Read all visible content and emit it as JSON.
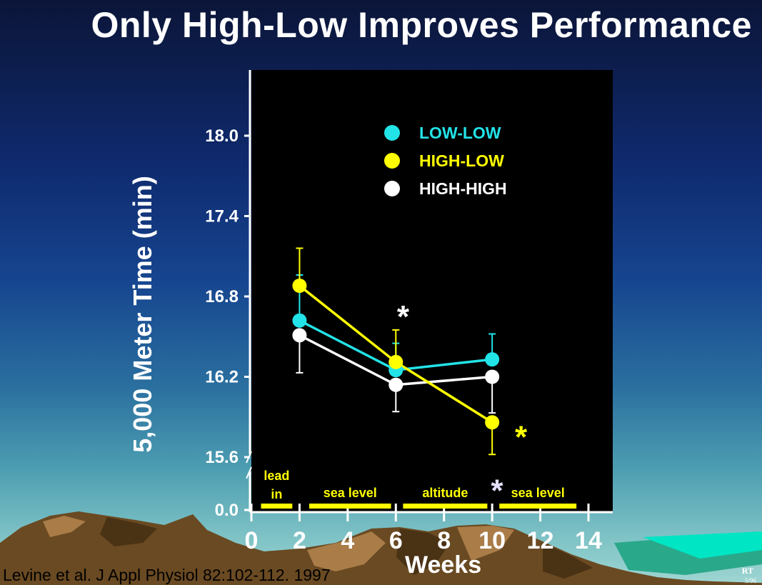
{
  "slide": {
    "title": "Only High-Low Improves Performance",
    "citation": "Levine et al. J Appl Physiol 82:102-112. 1997",
    "corner_mark": "RT",
    "corner_mark_2": "5/96"
  },
  "chart_data": {
    "type": "line",
    "ylabel": "5,000 Meter Time (min)",
    "xlabel": "Weeks",
    "x_ticks": [
      "0",
      "2",
      "4",
      "6",
      "8",
      "10",
      "12",
      "14"
    ],
    "y_ticks": [
      "0.0",
      "15.6",
      "16.2",
      "16.8",
      "17.4",
      "18.0"
    ],
    "y_tick_values": [
      15.2,
      15.6,
      16.2,
      16.8,
      17.4,
      18.0
    ],
    "ylim": [
      15.2,
      18.0
    ],
    "xlim": [
      0,
      14
    ],
    "axis_break": true,
    "legend_placement": "top-right",
    "series": [
      {
        "name": "LOW-LOW",
        "color": "#22e3e8",
        "points": [
          {
            "x": 2,
            "y": 16.62,
            "err_up": 0.34
          },
          {
            "x": 6,
            "y": 16.25,
            "err_up": 0.2
          },
          {
            "x": 10,
            "y": 16.33,
            "err_up": 0.19
          }
        ]
      },
      {
        "name": "HIGH-LOW",
        "color": "#ffff00",
        "points": [
          {
            "x": 2,
            "y": 16.88,
            "err_up": 0.28
          },
          {
            "x": 6,
            "y": 16.31,
            "err_up": 0.24
          },
          {
            "x": 10,
            "y": 15.86,
            "err_down": 0.24
          }
        ]
      },
      {
        "name": "HIGH-HIGH",
        "color": "#ffffff",
        "points": [
          {
            "x": 2,
            "y": 16.51,
            "err_down": 0.28
          },
          {
            "x": 6,
            "y": 16.14,
            "err_down": 0.2
          },
          {
            "x": 10,
            "y": 16.2,
            "err_down": 0.27
          }
        ]
      }
    ],
    "phases": [
      {
        "label_line1": "lead",
        "label_line2": "in",
        "x_start": 0.4,
        "x_end": 1.7
      },
      {
        "label_line1": "sea level",
        "label_line2": "",
        "x_start": 2.4,
        "x_end": 5.8
      },
      {
        "label_line1": "altitude",
        "label_line2": "",
        "x_start": 6.3,
        "x_end": 9.8
      },
      {
        "label_line1": "sea level",
        "label_line2": "",
        "x_start": 10.3,
        "x_end": 13.5
      }
    ],
    "phase_color": "#ffff00",
    "annotations": [
      {
        "text": "*",
        "x": 6.3,
        "y": 16.7,
        "color": "#ffffff"
      },
      {
        "text": "*",
        "x": 11.2,
        "y": 15.8,
        "color": "#ffff00"
      },
      {
        "text": "*",
        "x": 10.2,
        "y": 15.4,
        "color": "#e6e0ff"
      }
    ]
  }
}
